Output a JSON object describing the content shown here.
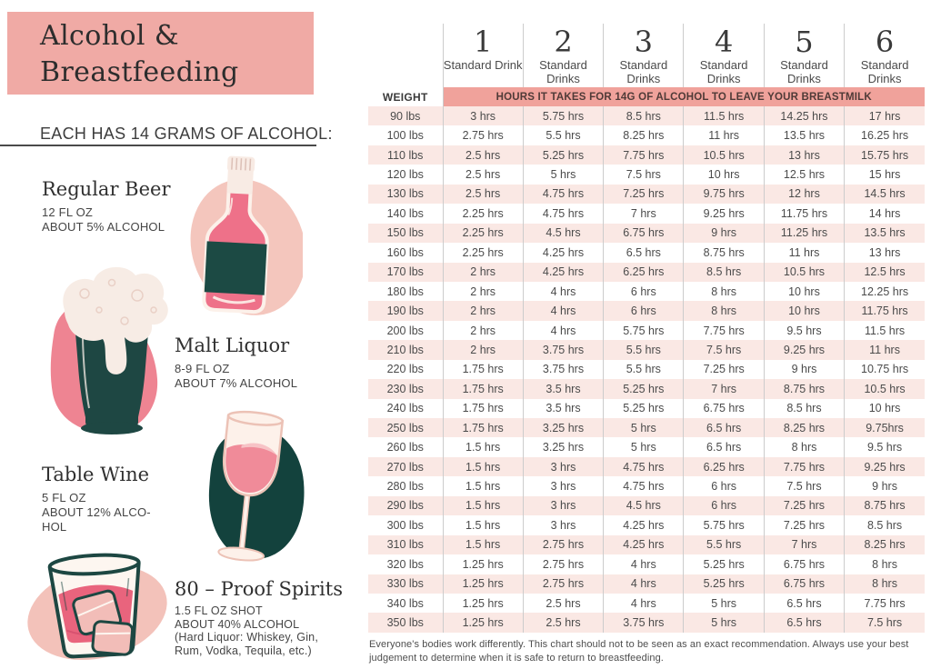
{
  "header": {
    "title": "Alcohol &\nBreastfeeding",
    "subtitle": "EACH HAS 14 GRAMS OF ALCOHOL:"
  },
  "drinks": [
    {
      "name": "Regular Beer",
      "details": "12 FL OZ\nABOUT 5% ALCOHOL"
    },
    {
      "name": "Malt Liquor",
      "details": "8-9 FL OZ\nABOUT 7% ALCOHOL"
    },
    {
      "name": "Table Wine",
      "details": "5 FL OZ\nABOUT 12% ALCO-\nHOL"
    },
    {
      "name": "80 – Proof Spirits",
      "details": "1.5 FL OZ SHOT\nABOUT 40% ALCOHOL\n(Hard Liquor: Whiskey, Gin,\nRum, Vodka, Tequila, etc.)"
    }
  ],
  "table": {
    "weight_header": "WEIGHT",
    "banner": "HOURS IT TAKES FOR 14G OF ALCOHOL TO LEAVE YOUR BREASTMILK",
    "columns": [
      {
        "number": "1",
        "label": "Standard Drink"
      },
      {
        "number": "2",
        "label": "Standard Drinks"
      },
      {
        "number": "3",
        "label": "Standard Drinks"
      },
      {
        "number": "4",
        "label": "Standard Drinks"
      },
      {
        "number": "5",
        "label": "Standard Drinks"
      },
      {
        "number": "6",
        "label": "Standard Drinks"
      }
    ],
    "rows": [
      [
        "90 lbs",
        "3 hrs",
        "5.75 hrs",
        "8.5 hrs",
        "11.5 hrs",
        "14.25 hrs",
        "17 hrs"
      ],
      [
        "100 lbs",
        "2.75 hrs",
        "5.5 hrs",
        "8.25 hrs",
        "11 hrs",
        "13.5 hrs",
        "16.25 hrs"
      ],
      [
        "110 lbs",
        "2.5 hrs",
        "5.25 hrs",
        "7.75 hrs",
        "10.5 hrs",
        "13 hrs",
        "15.75 hrs"
      ],
      [
        "120 lbs",
        "2.5 hrs",
        "5 hrs",
        "7.5 hrs",
        "10 hrs",
        "12.5 hrs",
        "15 hrs"
      ],
      [
        "130 lbs",
        "2.5 hrs",
        "4.75 hrs",
        "7.25 hrs",
        "9.75 hrs",
        "12 hrs",
        "14.5 hrs"
      ],
      [
        "140 lbs",
        "2.25 hrs",
        "4.75 hrs",
        "7 hrs",
        "9.25 hrs",
        "11.75 hrs",
        "14 hrs"
      ],
      [
        "150 lbs",
        "2.25 hrs",
        "4.5 hrs",
        "6.75 hrs",
        "9 hrs",
        "11.25 hrs",
        "13.5 hrs"
      ],
      [
        "160 lbs",
        "2.25 hrs",
        "4.25 hrs",
        "6.5 hrs",
        "8.75 hrs",
        "11 hrs",
        "13 hrs"
      ],
      [
        "170 lbs",
        "2 hrs",
        "4.25 hrs",
        "6.25 hrs",
        "8.5 hrs",
        "10.5 hrs",
        "12.5 hrs"
      ],
      [
        "180 lbs",
        "2 hrs",
        "4 hrs",
        "6 hrs",
        "8 hrs",
        "10 hrs",
        "12.25 hrs"
      ],
      [
        "190 lbs",
        "2 hrs",
        "4 hrs",
        "6 hrs",
        "8 hrs",
        "10 hrs",
        "11.75 hrs"
      ],
      [
        "200 lbs",
        "2 hrs",
        "4 hrs",
        "5.75 hrs",
        "7.75 hrs",
        "9.5 hrs",
        "11.5 hrs"
      ],
      [
        "210 lbs",
        "2 hrs",
        "3.75 hrs",
        "5.5 hrs",
        "7.5 hrs",
        "9.25 hrs",
        "11 hrs"
      ],
      [
        "220 lbs",
        "1.75 hrs",
        "3.75 hrs",
        "5.5 hrs",
        "7.25 hrs",
        "9 hrs",
        "10.75 hrs"
      ],
      [
        "230 lbs",
        "1.75 hrs",
        "3.5 hrs",
        "5.25 hrs",
        "7 hrs",
        "8.75 hrs",
        "10.5 hrs"
      ],
      [
        "240 lbs",
        "1.75 hrs",
        "3.5 hrs",
        "5.25 hrs",
        "6.75 hrs",
        "8.5 hrs",
        "10 hrs"
      ],
      [
        "250 lbs",
        "1.75 hrs",
        "3.25 hrs",
        "5 hrs",
        "6.5 hrs",
        "8.25 hrs",
        "9.75hrs"
      ],
      [
        "260 lbs",
        "1.5 hrs",
        "3.25 hrs",
        "5 hrs",
        "6.5 hrs",
        "8 hrs",
        "9.5 hrs"
      ],
      [
        "270 lbs",
        "1.5 hrs",
        "3 hrs",
        "4.75 hrs",
        "6.25 hrs",
        "7.75 hrs",
        "9.25 hrs"
      ],
      [
        "280 lbs",
        "1.5 hrs",
        "3 hrs",
        "4.75 hrs",
        "6 hrs",
        "7.5 hrs",
        "9 hrs"
      ],
      [
        "290 lbs",
        "1.5 hrs",
        "3 hrs",
        "4.5 hrs",
        "6 hrs",
        "7.25 hrs",
        "8.75 hrs"
      ],
      [
        "300 lbs",
        "1.5 hrs",
        "3 hrs",
        "4.25 hrs",
        "5.75 hrs",
        "7.25 hrs",
        "8.5 hrs"
      ],
      [
        "310 lbs",
        "1.5 hrs",
        "2.75 hrs",
        "4.25 hrs",
        "5.5 hrs",
        "7 hrs",
        "8.25 hrs"
      ],
      [
        "320 lbs",
        "1.25 hrs",
        "2.75 hrs",
        "4 hrs",
        "5.25 hrs",
        "6.75 hrs",
        "8 hrs"
      ],
      [
        "330 lbs",
        "1.25 hrs",
        "2.75 hrs",
        "4 hrs",
        "5.25 hrs",
        "6.75 hrs",
        "8 hrs"
      ],
      [
        "340 lbs",
        "1.25 hrs",
        "2.5 hrs",
        "4 hrs",
        "5 hrs",
        "6.5 hrs",
        "7.75 hrs"
      ],
      [
        "350 lbs",
        "1.25 hrs",
        "2.5 hrs",
        "3.75 hrs",
        "5 hrs",
        "6.5 hrs",
        "7.5 hrs"
      ]
    ]
  },
  "footnote": "Everyone's bodies work differently. This chart should not to be seen as an exact recommendation. Always use your best judgement to determine when it is safe to return to breastfeeding.",
  "colors": {
    "title_box_pink": "#f0aaa5",
    "banner_pink": "#f0a29b",
    "row_stripe_pink": "#fae8e4",
    "dark_teal": "#1d4742",
    "rose": "#ee7189",
    "blob_pink": "#f4c6bd",
    "text_dark": "#2d2d2d"
  },
  "chart_data": {
    "type": "table",
    "title": "Hours it takes for 14g of alcohol to leave your breastmilk",
    "row_header": "Weight (lbs)",
    "units": "hours",
    "weights_lbs": [
      90,
      100,
      110,
      120,
      130,
      140,
      150,
      160,
      170,
      180,
      190,
      200,
      210,
      220,
      230,
      240,
      250,
      260,
      270,
      280,
      290,
      300,
      310,
      320,
      330,
      340,
      350
    ],
    "series": [
      {
        "name": "1 Standard Drink",
        "hours": [
          3,
          2.75,
          2.5,
          2.5,
          2.5,
          2.25,
          2.25,
          2.25,
          2,
          2,
          2,
          2,
          2,
          1.75,
          1.75,
          1.75,
          1.75,
          1.5,
          1.5,
          1.5,
          1.5,
          1.5,
          1.5,
          1.25,
          1.25,
          1.25,
          1.25
        ]
      },
      {
        "name": "2 Standard Drinks",
        "hours": [
          5.75,
          5.5,
          5.25,
          5,
          4.75,
          4.75,
          4.5,
          4.25,
          4.25,
          4,
          4,
          4,
          3.75,
          3.75,
          3.5,
          3.5,
          3.25,
          3.25,
          3,
          3,
          3,
          3,
          2.75,
          2.75,
          2.75,
          2.5,
          2.5
        ]
      },
      {
        "name": "3 Standard Drinks",
        "hours": [
          8.5,
          8.25,
          7.75,
          7.5,
          7.25,
          7,
          6.75,
          6.5,
          6.25,
          6,
          6,
          5.75,
          5.5,
          5.5,
          5.25,
          5.25,
          5,
          5,
          4.75,
          4.75,
          4.5,
          4.25,
          4.25,
          4,
          4,
          4,
          3.75
        ]
      },
      {
        "name": "4 Standard Drinks",
        "hours": [
          11.5,
          11,
          10.5,
          10,
          9.75,
          9.25,
          9,
          8.75,
          8.5,
          8,
          8,
          7.75,
          7.5,
          7.25,
          7,
          6.75,
          6.5,
          6.5,
          6.25,
          6,
          6,
          5.75,
          5.5,
          5.25,
          5.25,
          5,
          5
        ]
      },
      {
        "name": "5 Standard Drinks",
        "hours": [
          14.25,
          13.5,
          13,
          12.5,
          12,
          11.75,
          11.25,
          11,
          10.5,
          10,
          10,
          9.5,
          9.25,
          9,
          8.75,
          8.5,
          8.25,
          8,
          7.75,
          7.5,
          7.25,
          7.25,
          7,
          6.75,
          6.75,
          6.5,
          6.5
        ]
      },
      {
        "name": "6 Standard Drinks",
        "hours": [
          17,
          16.25,
          15.75,
          15,
          14.5,
          14,
          13.5,
          13,
          12.5,
          12.25,
          11.75,
          11.5,
          11,
          10.75,
          10.5,
          10,
          9.75,
          9.5,
          9.25,
          9,
          8.75,
          8.5,
          8.25,
          8,
          8,
          7.75,
          7.5
        ]
      }
    ]
  }
}
